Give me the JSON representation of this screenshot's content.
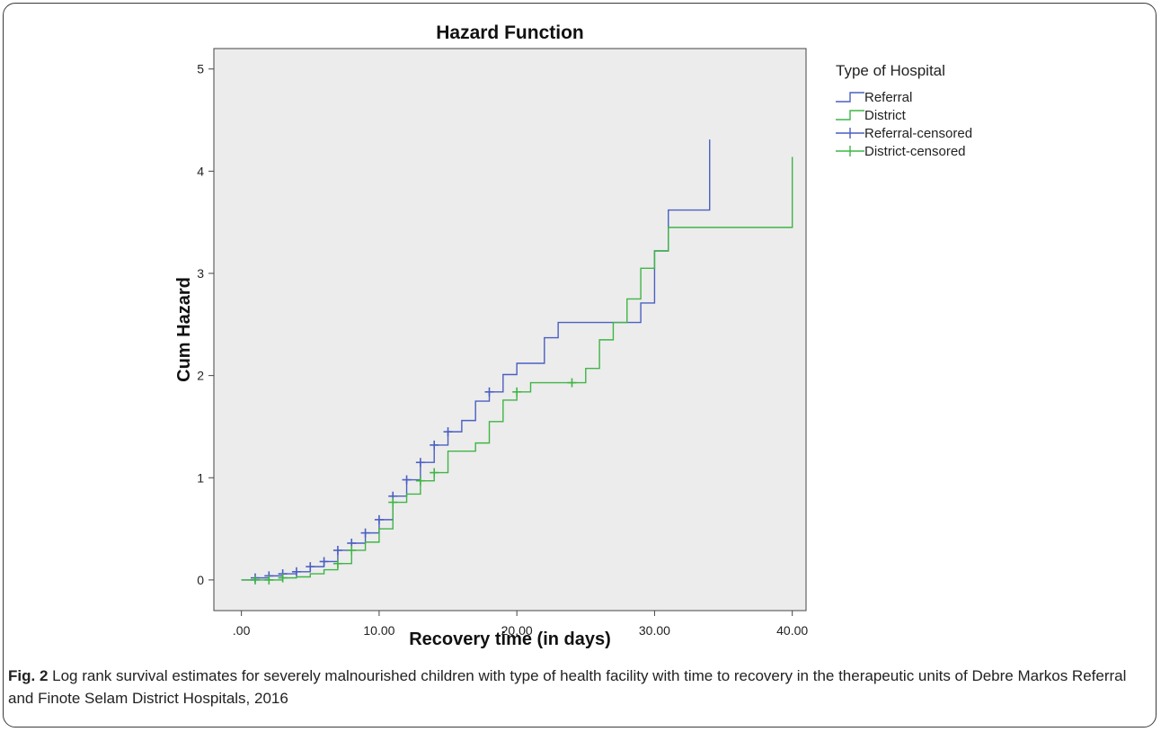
{
  "figure": {
    "caption_label": "Fig. 2",
    "caption_text": "Log rank survival estimates for severely malnourished children with type of health facility with time to recovery in the therapeutic units of Debre Markos Referral and Finote Selam District Hospitals, 2016"
  },
  "chart_data": {
    "type": "line",
    "step": true,
    "title": "Hazard Function",
    "xlabel": "Recovery time (in days)",
    "ylabel": "Cum Hazard",
    "xlim": [
      -2,
      41
    ],
    "ylim": [
      -0.3,
      5.2
    ],
    "xticks": [
      0,
      10,
      20,
      30,
      40
    ],
    "xtick_labels": [
      ".00",
      "10.00",
      "20.00",
      "30.00",
      "40.00"
    ],
    "yticks": [
      0,
      1,
      2,
      3,
      4,
      5
    ],
    "ytick_labels": [
      "0",
      "1",
      "2",
      "3",
      "4",
      "5"
    ],
    "grid": false,
    "background": "#ececec",
    "legend": {
      "title": "Type of Hospital",
      "placement": "right",
      "entries": [
        "Referral",
        "District",
        "Referral-censored",
        "District-censored"
      ]
    },
    "series": [
      {
        "name": "Referral",
        "color": "#4b5fc1",
        "x": [
          0,
          1,
          2,
          3,
          4,
          5,
          6,
          7,
          8,
          9,
          10,
          11,
          12,
          13,
          14,
          15,
          16,
          17,
          18,
          19,
          20,
          22,
          23,
          29,
          30,
          31,
          34,
          34
        ],
        "y": [
          0,
          0.02,
          0.04,
          0.06,
          0.08,
          0.13,
          0.18,
          0.29,
          0.36,
          0.46,
          0.59,
          0.82,
          0.98,
          1.15,
          1.32,
          1.45,
          1.56,
          1.75,
          1.84,
          2.01,
          2.12,
          2.37,
          2.52,
          2.71,
          3.22,
          3.62,
          3.62,
          4.31
        ]
      },
      {
        "name": "District",
        "color": "#3fb545",
        "x": [
          0,
          3,
          4,
          5,
          6,
          7,
          8,
          9,
          10,
          11,
          12,
          13,
          14,
          15,
          17,
          18,
          19,
          20,
          21,
          25,
          26,
          27,
          28,
          29,
          30,
          31,
          40,
          40
        ],
        "y": [
          0,
          0.02,
          0.03,
          0.06,
          0.1,
          0.16,
          0.29,
          0.37,
          0.5,
          0.76,
          0.84,
          0.97,
          1.05,
          1.26,
          1.34,
          1.55,
          1.76,
          1.84,
          1.93,
          2.07,
          2.35,
          2.52,
          2.75,
          3.05,
          3.22,
          3.45,
          3.45,
          4.14
        ]
      },
      {
        "name": "Referral-censored",
        "color": "#4b5fc1",
        "x": [
          1,
          2,
          3,
          4,
          5,
          6,
          7,
          8,
          9,
          10,
          11,
          12,
          13,
          14,
          15,
          18
        ],
        "y": [
          0.02,
          0.04,
          0.06,
          0.08,
          0.13,
          0.18,
          0.29,
          0.36,
          0.46,
          0.59,
          0.82,
          0.98,
          1.15,
          1.32,
          1.45,
          1.84
        ]
      },
      {
        "name": "District-censored",
        "color": "#3fb545",
        "x": [
          1,
          2,
          3,
          7,
          8,
          11,
          13,
          14,
          20,
          24
        ],
        "y": [
          0,
          0,
          0.02,
          0.16,
          0.29,
          0.76,
          0.97,
          1.05,
          1.84,
          1.93
        ]
      }
    ]
  }
}
